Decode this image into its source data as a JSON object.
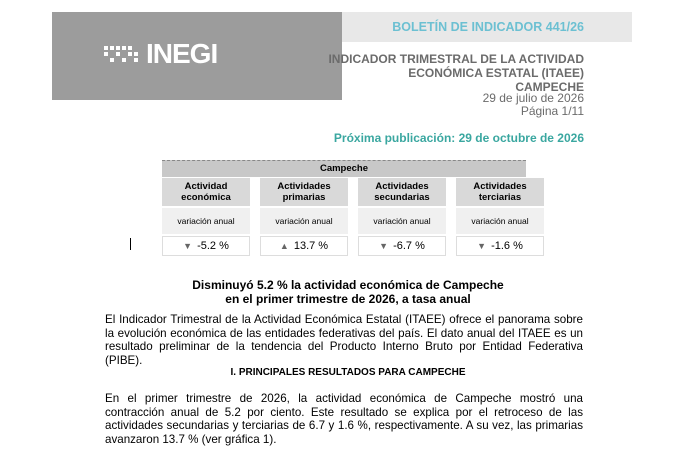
{
  "header": {
    "logo": "INEGI",
    "bulletin": "BOLETÍN DE INDICADOR 441/26",
    "title_lines": [
      "INDICADOR TRIMESTRAL DE LA ACTIVIDAD",
      "ECONÓMICA ESTATAL (ITAEE)",
      "CAMPECHE"
    ],
    "date": "29 de julio de 2026",
    "page": "Página 1/11",
    "next_publication": "Próxima publicación: 29 de octubre de 2026"
  },
  "table": {
    "title": "Campeche",
    "columns": [
      {
        "name": "Actividad económica",
        "unit": "variación anual",
        "value": "-5.2 %"
      },
      {
        "name": "Actividades primarias",
        "unit": "variación anual",
        "value": "13.7 %"
      },
      {
        "name": "Actividades secundarias",
        "unit": "variación anual",
        "value": "-6.7 %"
      },
      {
        "name": "Actividades terciarias",
        "unit": "variación anual",
        "value": "-1.6 %"
      }
    ]
  },
  "headline": [
    "Disminuyó 5.2 % la actividad económica de Campeche",
    "en el primer trimestre de 2026, a tasa anual"
  ],
  "intro": "El Indicador Trimestral de la Actividad Económica Estatal (ITAEE) ofrece el panorama sobre la evolución económica de las entidades federativas del país. El dato anual del ITAEE es un resultado preliminar de la tendencia del Producto Interno Bruto por Entidad Federativa (PIBE).",
  "section": "I. PRINCIPALES RESULTADOS PARA CAMPECHE",
  "body": "En el primer trimestre de 2026, la actividad económica de Campeche mostró una contracción anual de 5.2 por ciento. Este resultado se explica por el retroceso de las actividades secundarias y terciarias de 6.7 y 1.6 %, respectivamente. A su vez, las primarias avanzaron 13.7 % (ver gráfica 1)."
}
